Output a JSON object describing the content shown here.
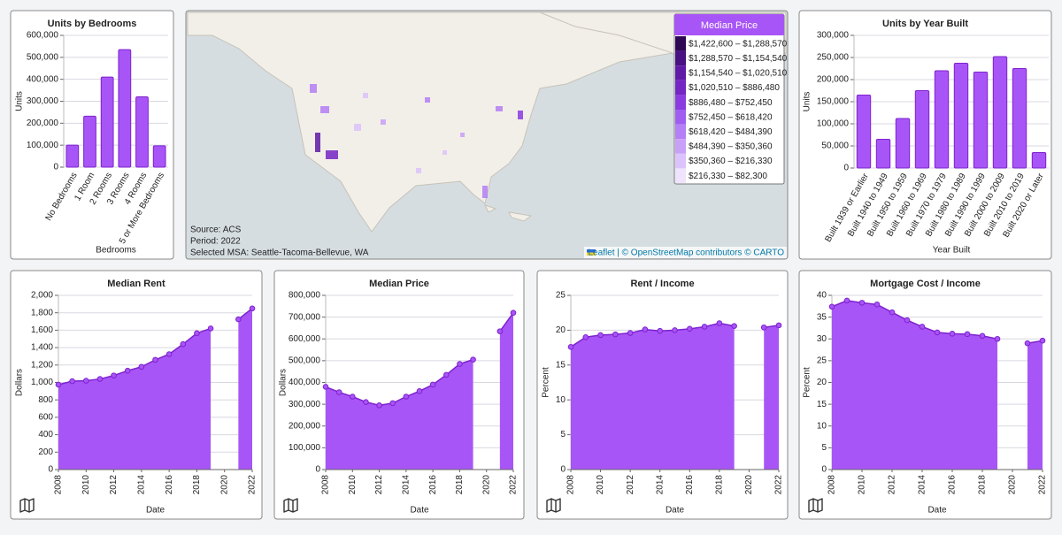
{
  "chart_data": [
    {
      "type": "bar",
      "title": "Units by Bedrooms",
      "x_label": "Bedrooms",
      "y_label": "Units",
      "categories": [
        "No Bedrooms",
        "1 Room",
        "2 Rooms",
        "3 Rooms",
        "4 Rooms",
        "5 or More Bedrooms"
      ],
      "values": [
        100000,
        232000,
        410000,
        535000,
        320000,
        97000
      ],
      "color": "#a855f7",
      "stroke": "#7e22ce",
      "grid": true,
      "ylim": [
        0,
        600000
      ],
      "yticks": [
        0,
        {
          "value": 100000,
          "label": "100,000"
        },
        {
          "value": 200000,
          "label": "200,000"
        },
        {
          "value": 300000,
          "label": "300,000"
        },
        {
          "value": 400000,
          "label": "400,000"
        },
        {
          "value": 500000,
          "label": "500,000"
        },
        {
          "value": 600000,
          "label": "600,000"
        }
      ]
    },
    {
      "type": "bar",
      "title": "Units by Year Built",
      "x_label": "Year Built",
      "y_label": "Units",
      "categories": [
        "Built 1939 or Earlier",
        "Built 1940 to 1949",
        "Built 1950 to 1959",
        "Built 1960 to 1969",
        "Built 1970 to 1979",
        "Built 1980 to 1989",
        "Built 1990 to 1999",
        "Built 2000 to 2009",
        "Built 2010 to 2019",
        "Built 2020 or Later"
      ],
      "values": [
        165000,
        65000,
        112000,
        175000,
        220000,
        237000,
        217000,
        252000,
        225000,
        35000
      ],
      "color": "#a855f7",
      "stroke": "#7e22ce",
      "grid": true,
      "ylim": [
        0,
        300000
      ],
      "yticks": [
        0,
        {
          "value": 50000,
          "label": "50,000"
        },
        {
          "value": 100000,
          "label": "100,000"
        },
        {
          "value": 150000,
          "label": "150,000"
        },
        {
          "value": 200000,
          "label": "200,000"
        },
        {
          "value": 250000,
          "label": "250,000"
        },
        {
          "value": 300000,
          "label": "300,000"
        }
      ]
    },
    {
      "type": "area",
      "title": "Median Rent",
      "x_label": "Date",
      "y_label": "Dollars",
      "x": [
        2008,
        2009,
        2010,
        2011,
        2012,
        2013,
        2014,
        2015,
        2016,
        2017,
        2018,
        2019,
        2020,
        2021,
        2022
      ],
      "values": [
        975,
        1015,
        1020,
        1040,
        1080,
        1135,
        1180,
        1260,
        1325,
        1440,
        1565,
        1620,
        null,
        1725,
        1850
      ],
      "color": "#a855f7",
      "stroke": "#7e22ce",
      "grid": true,
      "xlim": [
        2008,
        2022
      ],
      "xticks": [
        2008,
        2010,
        2012,
        2014,
        2016,
        2018,
        2020,
        2022
      ],
      "ylim": [
        0,
        2000
      ],
      "yticks": [
        0,
        200,
        400,
        600,
        800,
        {
          "value": 1000,
          "label": "1,000"
        },
        {
          "value": 1200,
          "label": "1,200"
        },
        {
          "value": 1400,
          "label": "1,400"
        },
        {
          "value": 1600,
          "label": "1,600"
        },
        {
          "value": 1800,
          "label": "1,800"
        },
        {
          "value": 2000,
          "label": "2,000"
        }
      ]
    },
    {
      "type": "area",
      "title": "Median Price",
      "x_label": "Date",
      "y_label": "Dollars",
      "x": [
        2008,
        2009,
        2010,
        2011,
        2012,
        2013,
        2014,
        2015,
        2016,
        2017,
        2018,
        2019,
        2020,
        2021,
        2022
      ],
      "values": [
        380000,
        355000,
        335000,
        310000,
        295000,
        305000,
        335000,
        360000,
        390000,
        435000,
        485000,
        505000,
        null,
        635000,
        720000
      ],
      "color": "#a855f7",
      "stroke": "#7e22ce",
      "grid": true,
      "xlim": [
        2008,
        2022
      ],
      "xticks": [
        2008,
        2010,
        2012,
        2014,
        2016,
        2018,
        2020,
        2022
      ],
      "ylim": [
        0,
        800000
      ],
      "yticks": [
        0,
        {
          "value": 100000,
          "label": "100,000"
        },
        {
          "value": 200000,
          "label": "200,000"
        },
        {
          "value": 300000,
          "label": "300,000"
        },
        {
          "value": 400000,
          "label": "400,000"
        },
        {
          "value": 500000,
          "label": "500,000"
        },
        {
          "value": 600000,
          "label": "600,000"
        },
        {
          "value": 700000,
          "label": "700,000"
        },
        {
          "value": 800000,
          "label": "800,000"
        }
      ]
    },
    {
      "type": "area",
      "title": "Rent / Income",
      "x_label": "Date",
      "y_label": "Percent",
      "x": [
        2008,
        2009,
        2010,
        2011,
        2012,
        2013,
        2014,
        2015,
        2016,
        2017,
        2018,
        2019,
        2020,
        2021,
        2022
      ],
      "values": [
        17.6,
        19.0,
        19.3,
        19.4,
        19.6,
        20.1,
        19.9,
        20.0,
        20.2,
        20.5,
        21.0,
        20.6,
        null,
        20.4,
        20.7
      ],
      "color": "#a855f7",
      "stroke": "#7e22ce",
      "grid": true,
      "xlim": [
        2008,
        2022
      ],
      "xticks": [
        2008,
        2010,
        2012,
        2014,
        2016,
        2018,
        2020,
        2022
      ],
      "ylim": [
        0,
        25
      ],
      "yticks": [
        0,
        5,
        10,
        15,
        20,
        25
      ]
    },
    {
      "type": "area",
      "title": "Mortgage Cost / Income",
      "x_label": "Date",
      "y_label": "Percent",
      "x": [
        2008,
        2009,
        2010,
        2011,
        2012,
        2013,
        2014,
        2015,
        2016,
        2017,
        2018,
        2019,
        2020,
        2021,
        2022
      ],
      "values": [
        37.4,
        38.8,
        38.3,
        37.9,
        36.1,
        34.3,
        32.8,
        31.5,
        31.2,
        31.1,
        30.7,
        30.0,
        null,
        29.0,
        29.6
      ],
      "color": "#a855f7",
      "stroke": "#7e22ce",
      "grid": true,
      "xlim": [
        2008,
        2022
      ],
      "xticks": [
        2008,
        2010,
        2012,
        2014,
        2016,
        2018,
        2020,
        2022
      ],
      "ylim": [
        0,
        40
      ],
      "yticks": [
        0,
        5,
        10,
        15,
        20,
        25,
        30,
        35,
        40
      ]
    }
  ],
  "map": {
    "legend_title": "Median Price",
    "legend": [
      {
        "label": "$1,422,600 – $1,288,570",
        "color": "#2e0854"
      },
      {
        "label": "$1,288,570 – $1,154,540",
        "color": "#4a1182"
      },
      {
        "label": "$1,154,540 – $1,020,510",
        "color": "#5f1aa6"
      },
      {
        "label": "$1,020,510 – $886,480",
        "color": "#7426c4"
      },
      {
        "label": "$886,480 – $752,450",
        "color": "#8a3ce0"
      },
      {
        "label": "$752,450 – $618,420",
        "color": "#a05ef0"
      },
      {
        "label": "$618,420 – $484,390",
        "color": "#b57ff5"
      },
      {
        "label": "$484,390 – $350,360",
        "color": "#c9a0f8"
      },
      {
        "label": "$350,360 – $216,330",
        "color": "#dcc3fb"
      },
      {
        "label": "$216,330 – $82,300",
        "color": "#efe3fd"
      }
    ],
    "source": "Source: ACS",
    "period": "Period: 2022",
    "selected": "Selected MSA: Seattle-Tacoma-Bellevue, WA",
    "attribution": "Leaflet | © OpenStreetMap contributors © CARTO"
  }
}
